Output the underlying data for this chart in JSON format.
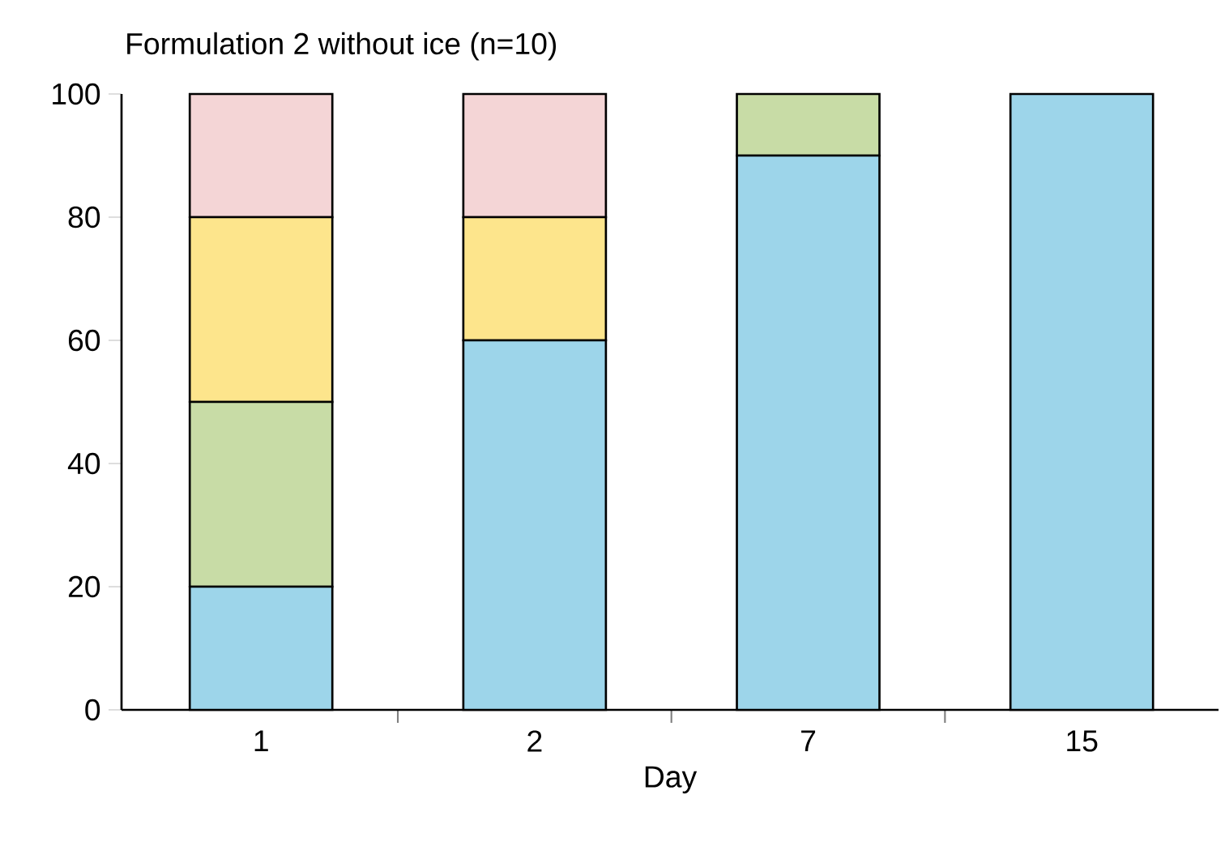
{
  "chart_data": {
    "type": "bar",
    "stacked": true,
    "title": "Formulation 2 without ice (n=10)",
    "xlabel": "Day",
    "categories": [
      "1",
      "2",
      "7",
      "15"
    ],
    "series": [
      {
        "color": "#9dd5ea",
        "values": [
          20,
          60,
          90,
          100
        ]
      },
      {
        "color": "#c8dca6",
        "values": [
          30,
          0,
          10,
          0
        ]
      },
      {
        "color": "#fde58c",
        "values": [
          30,
          20,
          0,
          0
        ]
      },
      {
        "color": "#f4d5d6",
        "values": [
          20,
          20,
          0,
          0
        ]
      }
    ],
    "ylim": [
      0,
      100
    ],
    "yticks": [
      0,
      20,
      40,
      60,
      80,
      100
    ],
    "grid": false
  }
}
